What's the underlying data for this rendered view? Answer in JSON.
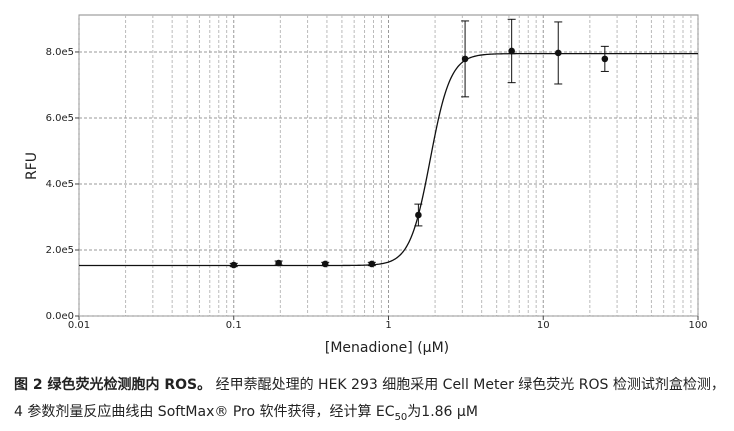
{
  "chart_data": {
    "type": "scatter",
    "x_label": "[Menadione] (µM)",
    "y_label": "RFU",
    "log_x": true,
    "grid": true,
    "xlim": [
      0.01,
      100
    ],
    "xticks": [
      0.01,
      0.1,
      1,
      10,
      100
    ],
    "x_minor_ticks": [
      0.02,
      0.03,
      0.04,
      0.05,
      0.06,
      0.07,
      0.08,
      0.09,
      0.2,
      0.3,
      0.4,
      0.5,
      0.6,
      0.7,
      0.8,
      0.9,
      2,
      3,
      4,
      5,
      6,
      7,
      8,
      9,
      20,
      30,
      40,
      50,
      60,
      70,
      80,
      90
    ],
    "ylim": [
      0,
      912000
    ],
    "yticks": [
      {
        "value": 0,
        "label": "0.0e0"
      },
      {
        "value": 200000,
        "label": "2.0e5"
      },
      {
        "value": 400000,
        "label": "4.0e5"
      },
      {
        "value": 600000,
        "label": "6.0e5"
      },
      {
        "value": 800000,
        "label": "8.0e5"
      }
    ],
    "x": [
      0.1,
      0.195,
      0.39,
      0.78,
      1.56,
      3.125,
      6.25,
      12.5,
      25
    ],
    "series": [
      {
        "color": "#111111",
        "values": [
          154500,
          160600,
          157600,
          157600,
          306000,
          779000,
          803000,
          797000,
          779000
        ],
        "errors": [
          5000,
          6000,
          5000,
          5000,
          33000,
          115000,
          96000,
          94000,
          38000
        ]
      }
    ],
    "fit": {
      "bottom": 153000,
      "top": 795000,
      "ec50": 1.86,
      "hill": 6.6,
      "color": "#111111"
    }
  },
  "caption": {
    "label": "图 2  绿色荧光检测胞内 ROS。",
    "text_1": "经甲萘醌处理的 HEK 293 细胞采用 Cell Meter 绿色荧光 ROS 检测试剂盒检测，4 参数剂量反应曲线由 SoftMax® Pro 软件获得，经计算 EC",
    "subscript": "50",
    "text_2": "为1.86 µM"
  }
}
